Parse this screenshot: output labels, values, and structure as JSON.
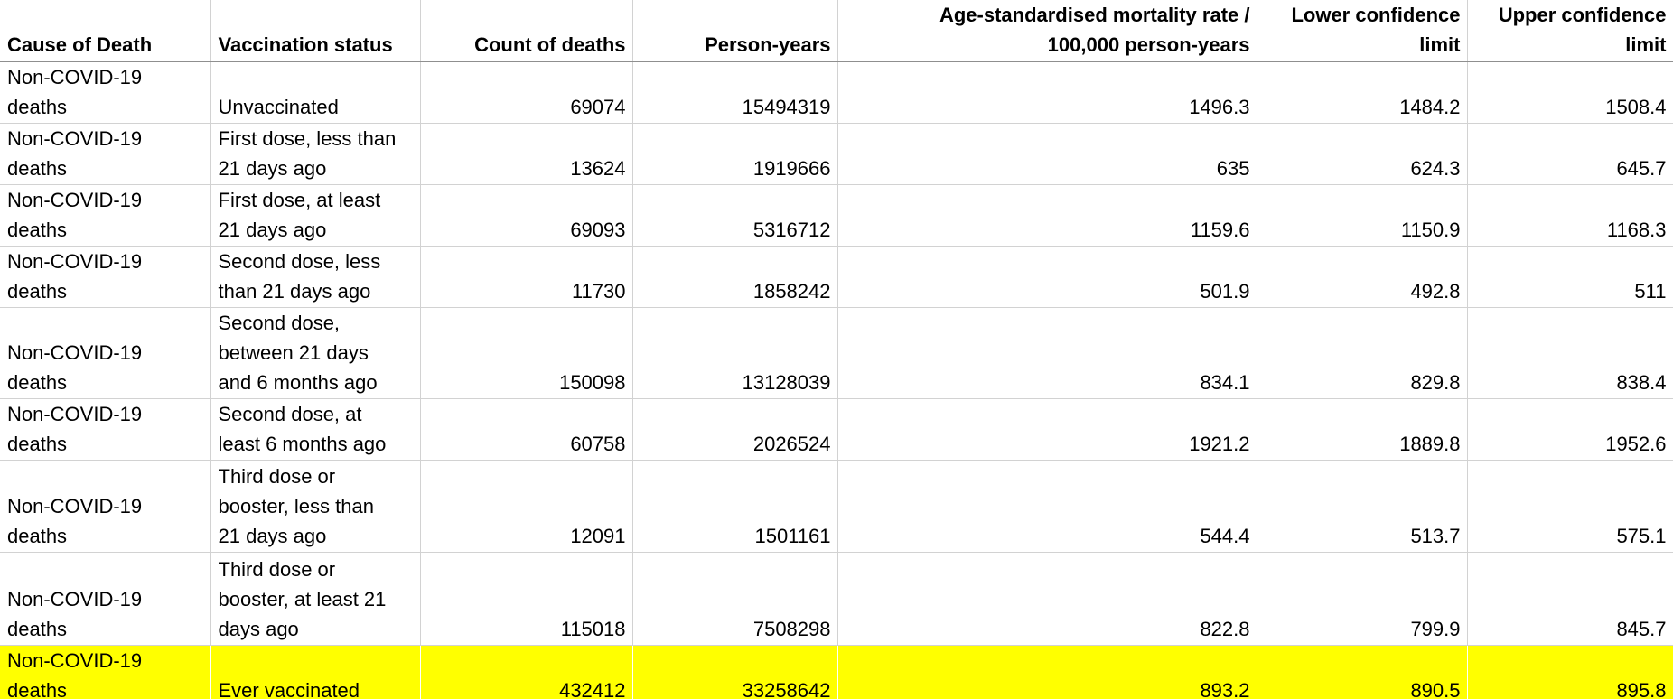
{
  "table": {
    "highlight_color": "#ffff00",
    "gridline_color": "#d2d2d2",
    "header_underline_color": "#8f8f8f",
    "columns": [
      {
        "label": "Cause of Death",
        "align": "left"
      },
      {
        "label": "Vaccination status",
        "align": "left"
      },
      {
        "label": "Count of deaths",
        "align": "right"
      },
      {
        "label": "Person-years",
        "align": "right"
      },
      {
        "label": "Age-standardised mortality rate / 100,000 person-years",
        "align": "right"
      },
      {
        "label": "Lower confidence limit",
        "align": "right"
      },
      {
        "label": "Upper confidence limit",
        "align": "right"
      }
    ],
    "rows": [
      {
        "cause_of_death": "Non-COVID-19 deaths",
        "vaccination_status": "Unvaccinated",
        "count_of_deaths": "69074",
        "person_years": "15494319",
        "asmr_per_100k": "1496.3",
        "lower_confidence_limit": "1484.2",
        "upper_confidence_limit": "1508.4",
        "highlighted": false
      },
      {
        "cause_of_death": "Non-COVID-19 deaths",
        "vaccination_status": "First dose, less than 21 days ago",
        "count_of_deaths": "13624",
        "person_years": "1919666",
        "asmr_per_100k": "635",
        "lower_confidence_limit": "624.3",
        "upper_confidence_limit": "645.7",
        "highlighted": false
      },
      {
        "cause_of_death": "Non-COVID-19 deaths",
        "vaccination_status": "First dose, at least 21 days ago",
        "count_of_deaths": "69093",
        "person_years": "5316712",
        "asmr_per_100k": "1159.6",
        "lower_confidence_limit": "1150.9",
        "upper_confidence_limit": "1168.3",
        "highlighted": false
      },
      {
        "cause_of_death": "Non-COVID-19 deaths",
        "vaccination_status": "Second dose, less than 21 days ago",
        "count_of_deaths": "11730",
        "person_years": "1858242",
        "asmr_per_100k": "501.9",
        "lower_confidence_limit": "492.8",
        "upper_confidence_limit": "511",
        "highlighted": false
      },
      {
        "cause_of_death": "Non-COVID-19 deaths",
        "vaccination_status": "Second dose, between 21 days and 6 months ago",
        "count_of_deaths": "150098",
        "person_years": "13128039",
        "asmr_per_100k": "834.1",
        "lower_confidence_limit": "829.8",
        "upper_confidence_limit": "838.4",
        "highlighted": false
      },
      {
        "cause_of_death": "Non-COVID-19 deaths",
        "vaccination_status": "Second dose, at least 6 months ago",
        "count_of_deaths": "60758",
        "person_years": "2026524",
        "asmr_per_100k": "1921.2",
        "lower_confidence_limit": "1889.8",
        "upper_confidence_limit": "1952.6",
        "highlighted": false
      },
      {
        "cause_of_death": "Non-COVID-19 deaths",
        "vaccination_status": "Third dose or booster, less than 21 days ago",
        "count_of_deaths": "12091",
        "person_years": "1501161",
        "asmr_per_100k": "544.4",
        "lower_confidence_limit": "513.7",
        "upper_confidence_limit": "575.1",
        "highlighted": false
      },
      {
        "cause_of_death": "Non-COVID-19 deaths",
        "vaccination_status": "Third dose or booster, at least 21 days ago",
        "count_of_deaths": "115018",
        "person_years": "7508298",
        "asmr_per_100k": "822.8",
        "lower_confidence_limit": "799.9",
        "upper_confidence_limit": "845.7",
        "highlighted": false
      },
      {
        "cause_of_death": "Non-COVID-19 deaths",
        "vaccination_status": "Ever vaccinated",
        "count_of_deaths": "432412",
        "person_years": "33258642",
        "asmr_per_100k": "893.2",
        "lower_confidence_limit": "890.5",
        "upper_confidence_limit": "895.8",
        "highlighted": true
      }
    ]
  }
}
